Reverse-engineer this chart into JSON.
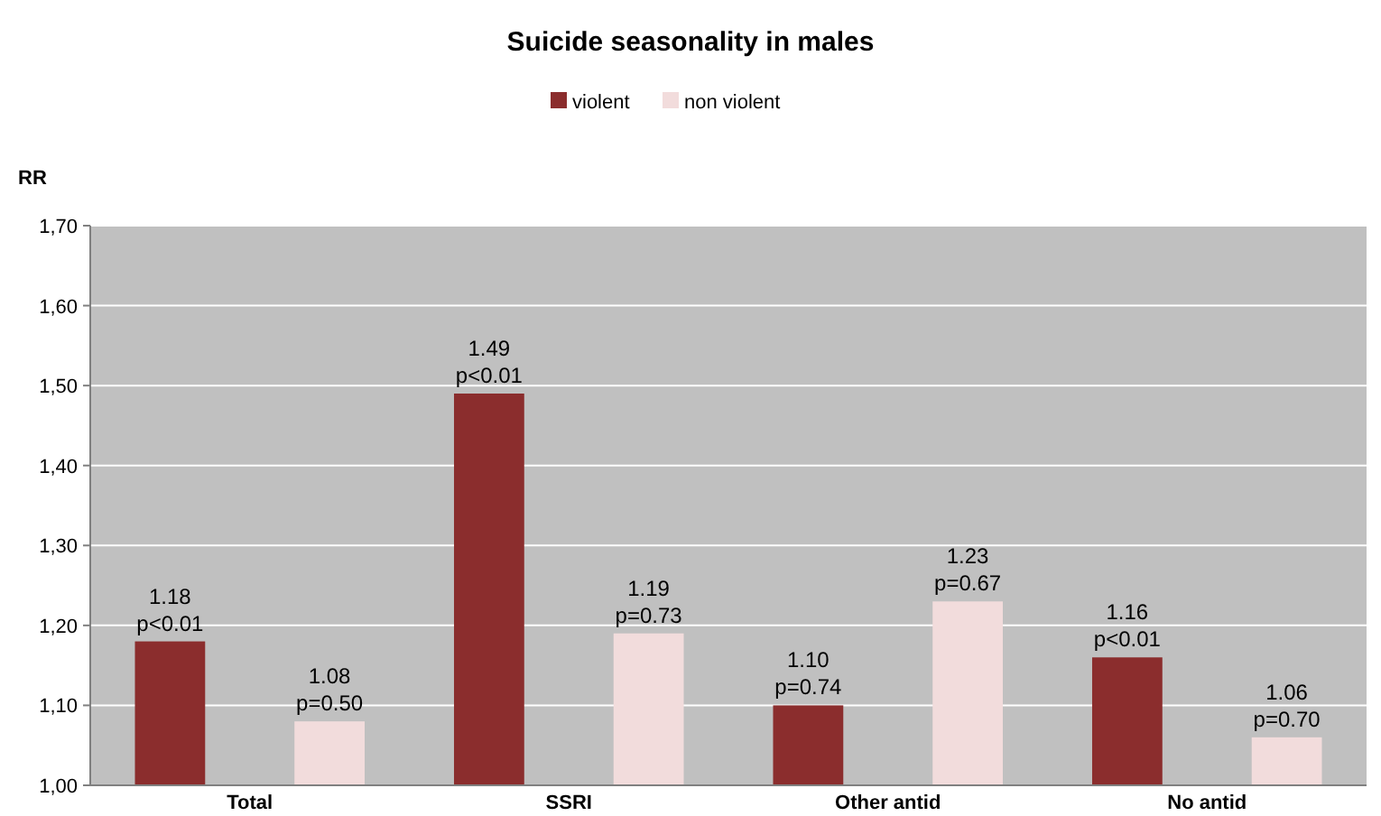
{
  "chart_data": {
    "type": "bar",
    "title": "Suicide seasonality in males",
    "ylabel": "RR",
    "categories": [
      "Total",
      "SSRI",
      "Other antid",
      "No antid"
    ],
    "series": [
      {
        "name": "violent",
        "color": "#8b2d2d",
        "values": [
          1.18,
          1.49,
          1.1,
          1.16
        ],
        "value_labels": [
          "1.18\np<0.01",
          "1.49\np<0.01",
          "1.10\np=0.74",
          "1.16\np<0.01"
        ]
      },
      {
        "name": "non violent",
        "color": "#f2dcdc",
        "values": [
          1.08,
          1.19,
          1.23,
          1.06
        ],
        "value_labels": [
          "1.08\np=0.50",
          "1.19\np=0.73",
          "1.23\np=0.67",
          "1.06\np=0.70"
        ]
      }
    ],
    "ylim": [
      1.0,
      1.7
    ],
    "yticks": [
      {
        "value": 1.0,
        "label": "1,00"
      },
      {
        "value": 1.1,
        "label": "1,10"
      },
      {
        "value": 1.2,
        "label": "1,20"
      },
      {
        "value": 1.3,
        "label": "1,30"
      },
      {
        "value": 1.4,
        "label": "1,40"
      },
      {
        "value": 1.5,
        "label": "1,50"
      },
      {
        "value": 1.6,
        "label": "1,60"
      },
      {
        "value": 1.7,
        "label": "1,70"
      }
    ],
    "grid": "y",
    "legend": "top"
  }
}
